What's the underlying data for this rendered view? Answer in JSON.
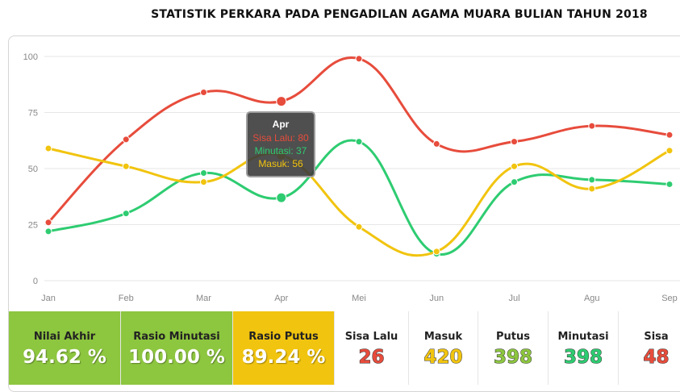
{
  "title": "STATISTIK PERKARA PADA PENGADILAN AGAMA MUARA BULIAN TAHUN 2018",
  "chart_data": {
    "type": "line",
    "categories": [
      "Jan",
      "Feb",
      "Mar",
      "Apr",
      "Mei",
      "Jun",
      "Jul",
      "Agu",
      "Sep"
    ],
    "y_ticks": [
      0,
      25,
      50,
      75,
      100
    ],
    "ylim": [
      0,
      100
    ],
    "grid": true,
    "series": [
      {
        "name": "Sisa Lalu",
        "color": "#e74c3c",
        "values": [
          26,
          63,
          84,
          80,
          99,
          61,
          62,
          69,
          65
        ]
      },
      {
        "name": "Minutasi",
        "color": "#2ecc71",
        "values": [
          22,
          30,
          48,
          37,
          62,
          12,
          44,
          45,
          43
        ]
      },
      {
        "name": "Masuk",
        "color": "#f1c40f",
        "values": [
          59,
          51,
          44,
          56,
          24,
          13,
          51,
          41,
          58
        ]
      }
    ],
    "tooltip": {
      "title": "Apr",
      "index": 3,
      "lines": [
        "Sisa Lalu: 80",
        "Minutasi: 37",
        "Masuk: 56"
      ]
    }
  },
  "stats": [
    {
      "label": "Nilai Akhir",
      "value": "94.62 %",
      "bg": "#8dc63f",
      "color": "#ffffff"
    },
    {
      "label": "Rasio Minutasi",
      "value": "100.00 %",
      "bg": "#8dc63f",
      "color": "#ffffff"
    },
    {
      "label": "Rasio Putus",
      "value": "89.24 %",
      "bg": "#f1c40f",
      "color": "#ffffff"
    },
    {
      "label": "Sisa Lalu",
      "value": "26",
      "bg": "#ffffff",
      "color": "#e74c3c"
    },
    {
      "label": "Masuk",
      "value": "420",
      "bg": "#ffffff",
      "color": "#f1c40f"
    },
    {
      "label": "Putus",
      "value": "398",
      "bg": "#ffffff",
      "color": "#8dc63f"
    },
    {
      "label": "Minutasi",
      "value": "398",
      "bg": "#ffffff",
      "color": "#2ecc71"
    },
    {
      "label": "Sisa",
      "value": "48",
      "bg": "#ffffff",
      "color": "#e74c3c"
    }
  ]
}
